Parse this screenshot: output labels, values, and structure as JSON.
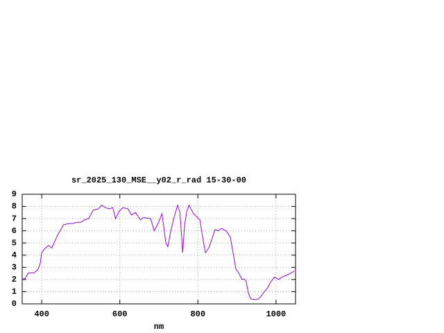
{
  "chart_data": {
    "type": "line",
    "title": "sr_2025_130_MSE__y02_r_rad 15-30-00",
    "x_label": "nm",
    "x": [
      350,
      358,
      366,
      380,
      390,
      396,
      400,
      407,
      417,
      426,
      440,
      456,
      470,
      480,
      490,
      500,
      510,
      520,
      532,
      545,
      553,
      563,
      573,
      582,
      589,
      598,
      608,
      621,
      630,
      640,
      653,
      661,
      679,
      688,
      698,
      708,
      718,
      723,
      730,
      738,
      748,
      754,
      761,
      766,
      771,
      777,
      789,
      805,
      812,
      819,
      828,
      844,
      852,
      860,
      872,
      883,
      890,
      897,
      905,
      913,
      918,
      923,
      930,
      936,
      948,
      955,
      961,
      970,
      978,
      985,
      991,
      996,
      1007,
      1015,
      1023,
      1030,
      1037,
      1047
    ],
    "series": [
      {
        "color": "#9400d3",
        "values": [
          2.0,
          2.1,
          2.55,
          2.55,
          2.8,
          3.3,
          4.2,
          4.5,
          4.8,
          4.6,
          5.6,
          6.5,
          6.6,
          6.6,
          6.7,
          6.7,
          6.9,
          7.0,
          7.7,
          7.8,
          8.1,
          7.9,
          7.8,
          7.9,
          7.0,
          7.6,
          7.9,
          7.8,
          7.3,
          7.5,
          6.9,
          7.1,
          7.0,
          6.0,
          6.6,
          7.4,
          5.0,
          4.7,
          5.9,
          7.0,
          8.1,
          7.5,
          4.2,
          6.5,
          7.5,
          8.1,
          7.4,
          6.9,
          5.5,
          4.2,
          4.6,
          6.1,
          6.0,
          6.2,
          6.0,
          5.5,
          4.2,
          2.9,
          2.5,
          2.0,
          2.05,
          1.9,
          0.8,
          0.4,
          0.35,
          0.4,
          0.6,
          1.0,
          1.3,
          1.7,
          2.0,
          2.2,
          2.0,
          2.2,
          2.3,
          2.4,
          2.5,
          2.7
        ]
      }
    ],
    "xlim": [
      350,
      1050
    ],
    "xticks": [
      400,
      600,
      800,
      1000
    ],
    "ylim": [
      0,
      9
    ],
    "yticks": [
      0,
      1,
      2,
      3,
      4,
      5,
      6,
      7,
      8,
      9
    ],
    "grid": true
  }
}
